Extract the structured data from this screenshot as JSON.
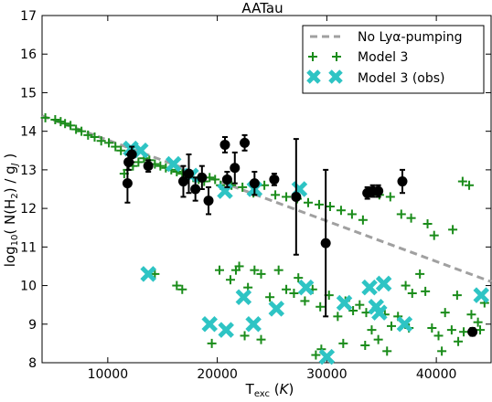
{
  "chart_data": {
    "type": "scatter",
    "title": "AATau",
    "xlabel": "T_exc (K)",
    "ylabel": "log10( N(H2) / gJ )",
    "xlim": [
      4000,
      45000
    ],
    "ylim": [
      8,
      17
    ],
    "xticks": [
      "10000",
      "20000",
      "30000",
      "40000"
    ],
    "xtick_values": [
      10000,
      20000,
      30000,
      40000
    ],
    "yticks": [
      "8",
      "9",
      "10",
      "11",
      "12",
      "13",
      "14",
      "15",
      "16",
      "17"
    ],
    "ytick_values": [
      8,
      9,
      10,
      11,
      12,
      13,
      14,
      15,
      16,
      17
    ],
    "legend_position": "top-right",
    "legend": {
      "no_pumping": "No Lyα-pumping",
      "model3": "Model 3",
      "model3_obs": "Model 3 (obs)"
    },
    "colors": {
      "no_pumping": "#a0a0a0",
      "model3": "#1a8c1a",
      "model3_obs": "#2ec4c4",
      "observed": "#000000"
    },
    "no_pumping_line": [
      [
        4000,
        14.4
      ],
      [
        45000,
        10.1
      ]
    ],
    "observed": [
      {
        "x": 11800,
        "y": 12.65,
        "err": 0.5
      },
      {
        "x": 11900,
        "y": 13.2,
        "err": 0.2
      },
      {
        "x": 12200,
        "y": 13.4,
        "err": 0.2
      },
      {
        "x": 13700,
        "y": 13.1,
        "err": 0.15
      },
      {
        "x": 16900,
        "y": 12.7,
        "err": 0.4
      },
      {
        "x": 17400,
        "y": 12.9,
        "err": 0.5
      },
      {
        "x": 18000,
        "y": 12.5,
        "err": 0.3
      },
      {
        "x": 18600,
        "y": 12.8,
        "err": 0.3
      },
      {
        "x": 19200,
        "y": 12.2,
        "err": 0.35
      },
      {
        "x": 20700,
        "y": 13.65,
        "err": 0.2
      },
      {
        "x": 20900,
        "y": 12.75,
        "err": 0.2
      },
      {
        "x": 21600,
        "y": 13.05,
        "err": 0.4
      },
      {
        "x": 22500,
        "y": 13.7,
        "err": 0.2
      },
      {
        "x": 23400,
        "y": 12.65,
        "err": 0.3
      },
      {
        "x": 25200,
        "y": 12.75,
        "err": 0.15
      },
      {
        "x": 27200,
        "y": 12.3,
        "err": 1.5
      },
      {
        "x": 29900,
        "y": 11.1,
        "err": 1.9
      },
      {
        "x": 33700,
        "y": 12.4,
        "err": 0.15
      },
      {
        "x": 34200,
        "y": 12.45,
        "err": 0.15
      },
      {
        "x": 34700,
        "y": 12.45,
        "err": 0.15
      },
      {
        "x": 36900,
        "y": 12.7,
        "err": 0.3
      },
      {
        "x": 43300,
        "y": 8.8,
        "err": 0.1
      }
    ],
    "model3": [
      [
        4300,
        14.35
      ],
      [
        5200,
        14.3
      ],
      [
        5700,
        14.25
      ],
      [
        6100,
        14.2
      ],
      [
        6600,
        14.15
      ],
      [
        7100,
        14.05
      ],
      [
        7600,
        14.0
      ],
      [
        8200,
        13.9
      ],
      [
        8800,
        13.85
      ],
      [
        9400,
        13.75
      ],
      [
        10100,
        13.7
      ],
      [
        10700,
        13.6
      ],
      [
        11200,
        13.5
      ],
      [
        11500,
        12.9
      ],
      [
        11800,
        13.0
      ],
      [
        12300,
        13.1
      ],
      [
        12800,
        13.2
      ],
      [
        13300,
        13.3
      ],
      [
        13800,
        13.25
      ],
      [
        14300,
        13.15
      ],
      [
        14800,
        13.1
      ],
      [
        15300,
        13.05
      ],
      [
        15800,
        13.0
      ],
      [
        16300,
        12.95
      ],
      [
        16800,
        12.9
      ],
      [
        17300,
        12.85
      ],
      [
        17800,
        12.8
      ],
      [
        18300,
        12.75
      ],
      [
        18800,
        12.7
      ],
      [
        19300,
        12.8
      ],
      [
        19800,
        12.75
      ],
      [
        20300,
        12.6
      ],
      [
        21300,
        12.6
      ],
      [
        22300,
        12.55
      ],
      [
        23300,
        12.4
      ],
      [
        24300,
        12.6
      ],
      [
        25300,
        12.35
      ],
      [
        26300,
        12.3
      ],
      [
        27300,
        12.25
      ],
      [
        28300,
        12.15
      ],
      [
        29300,
        12.1
      ],
      [
        30300,
        12.05
      ],
      [
        31300,
        11.95
      ],
      [
        32300,
        11.85
      ],
      [
        33300,
        11.7
      ],
      [
        34800,
        12.35
      ],
      [
        35800,
        12.3
      ],
      [
        36800,
        11.85
      ],
      [
        37700,
        11.75
      ],
      [
        39200,
        11.6
      ],
      [
        39800,
        11.3
      ],
      [
        41500,
        11.45
      ],
      [
        42400,
        12.7
      ],
      [
        43000,
        12.6
      ],
      [
        14300,
        10.3
      ],
      [
        16300,
        10.0
      ],
      [
        16800,
        9.9
      ],
      [
        20200,
        10.4
      ],
      [
        21200,
        10.15
      ],
      [
        21700,
        10.4
      ],
      [
        22000,
        10.5
      ],
      [
        22800,
        9.95
      ],
      [
        23400,
        10.4
      ],
      [
        24000,
        10.3
      ],
      [
        24800,
        9.7
      ],
      [
        25600,
        10.4
      ],
      [
        26300,
        9.9
      ],
      [
        27000,
        9.8
      ],
      [
        27400,
        10.2
      ],
      [
        28000,
        9.6
      ],
      [
        28700,
        9.9
      ],
      [
        29400,
        9.45
      ],
      [
        30200,
        9.75
      ],
      [
        31000,
        9.2
      ],
      [
        31700,
        9.6
      ],
      [
        32400,
        9.35
      ],
      [
        33000,
        9.5
      ],
      [
        33600,
        9.3
      ],
      [
        34100,
        8.85
      ],
      [
        34700,
        8.6
      ],
      [
        35300,
        9.25
      ],
      [
        35900,
        8.95
      ],
      [
        36500,
        9.2
      ],
      [
        37200,
        10.0
      ],
      [
        37800,
        9.8
      ],
      [
        38500,
        10.3
      ],
      [
        39000,
        9.85
      ],
      [
        39600,
        8.9
      ],
      [
        40200,
        8.7
      ],
      [
        40800,
        9.3
      ],
      [
        41400,
        8.85
      ],
      [
        41900,
        9.75
      ],
      [
        42500,
        8.8
      ],
      [
        43200,
        9.25
      ],
      [
        43800,
        9.05
      ],
      [
        44400,
        9.55
      ],
      [
        19500,
        8.5
      ],
      [
        22500,
        8.7
      ],
      [
        24000,
        8.6
      ],
      [
        29000,
        8.2
      ],
      [
        31500,
        8.5
      ],
      [
        33500,
        8.45
      ],
      [
        35500,
        8.3
      ],
      [
        37500,
        8.9
      ],
      [
        40500,
        8.3
      ],
      [
        42000,
        8.55
      ],
      [
        44000,
        8.85
      ],
      [
        29500,
        8.35
      ]
    ],
    "model3_obs": [
      [
        12100,
        13.55
      ],
      [
        13000,
        13.5
      ],
      [
        16000,
        13.15
      ],
      [
        17600,
        12.85
      ],
      [
        20700,
        12.45
      ],
      [
        23400,
        12.5
      ],
      [
        27500,
        12.5
      ],
      [
        13700,
        10.3
      ],
      [
        22400,
        9.7
      ],
      [
        19300,
        9.0
      ],
      [
        20800,
        8.85
      ],
      [
        23300,
        9.0
      ],
      [
        25400,
        9.4
      ],
      [
        28100,
        9.95
      ],
      [
        30000,
        8.15
      ],
      [
        31600,
        9.55
      ],
      [
        33900,
        9.95
      ],
      [
        34500,
        9.45
      ],
      [
        35200,
        10.05
      ],
      [
        34800,
        9.3
      ],
      [
        37100,
        9.0
      ],
      [
        44100,
        9.75
      ]
    ]
  }
}
